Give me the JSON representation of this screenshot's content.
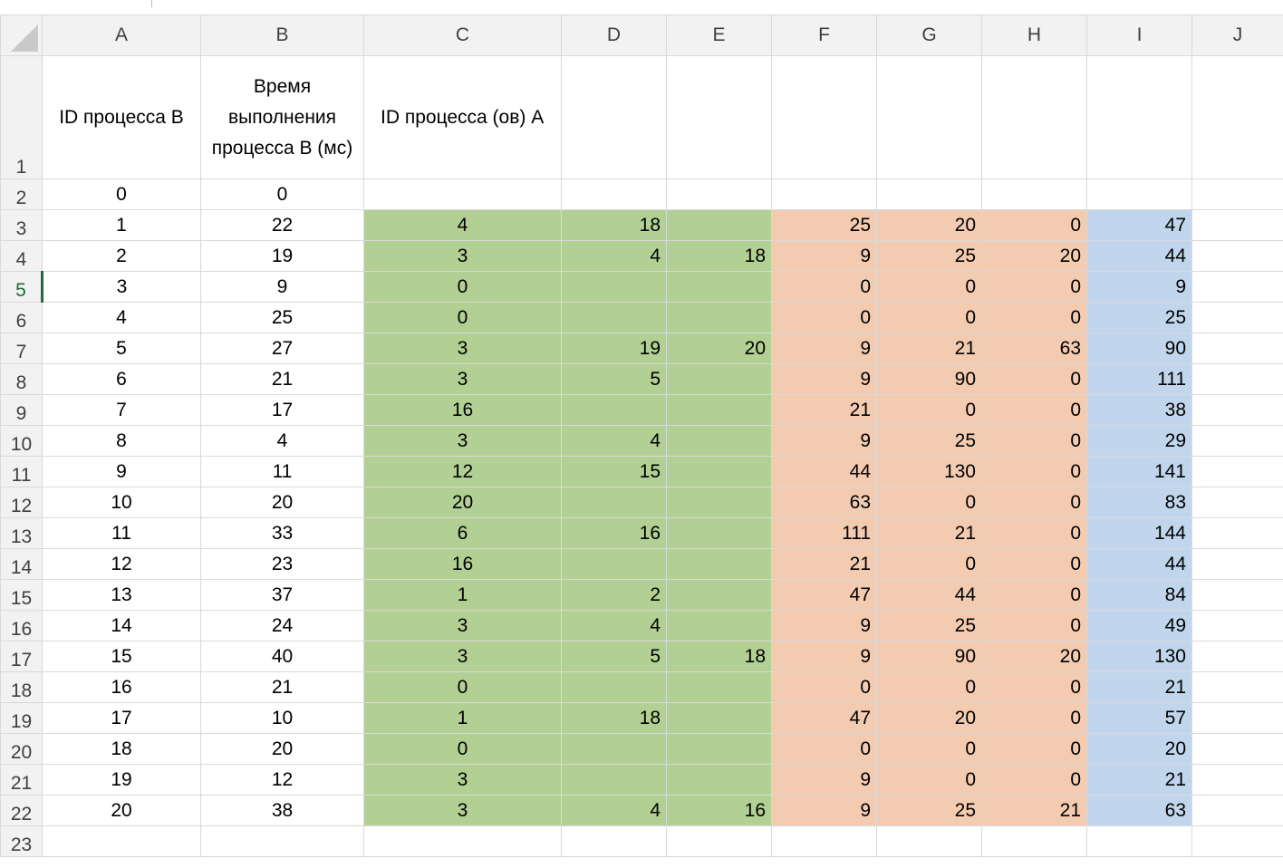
{
  "columns": [
    "A",
    "B",
    "C",
    "D",
    "E",
    "F",
    "G",
    "H",
    "I",
    "J"
  ],
  "header_row": {
    "row_label": "1",
    "a": "ID процесса B",
    "b_lines": [
      "Время",
      "выполнения",
      "процесса B (мс)"
    ],
    "c": "ID процесса (ов) A"
  },
  "active_row": "5",
  "colors": {
    "green": "#b2d093",
    "orange": "#f3cbb0",
    "blue": "#c1d6ec"
  },
  "rows": [
    {
      "r": "2",
      "a": "0",
      "b": "0",
      "c": "",
      "d": "",
      "e": "",
      "f": "",
      "g": "",
      "h": "",
      "i": ""
    },
    {
      "r": "3",
      "a": "1",
      "b": "22",
      "c": "4",
      "d": "18",
      "e": "",
      "f": "25",
      "g": "20",
      "h": "0",
      "i": "47"
    },
    {
      "r": "4",
      "a": "2",
      "b": "19",
      "c": "3",
      "d": "4",
      "e": "18",
      "f": "9",
      "g": "25",
      "h": "20",
      "i": "44"
    },
    {
      "r": "5",
      "a": "3",
      "b": "9",
      "c": "0",
      "d": "",
      "e": "",
      "f": "0",
      "g": "0",
      "h": "0",
      "i": "9"
    },
    {
      "r": "6",
      "a": "4",
      "b": "25",
      "c": "0",
      "d": "",
      "e": "",
      "f": "0",
      "g": "0",
      "h": "0",
      "i": "25"
    },
    {
      "r": "7",
      "a": "5",
      "b": "27",
      "c": "3",
      "d": "19",
      "e": "20",
      "f": "9",
      "g": "21",
      "h": "63",
      "i": "90"
    },
    {
      "r": "8",
      "a": "6",
      "b": "21",
      "c": "3",
      "d": "5",
      "e": "",
      "f": "9",
      "g": "90",
      "h": "0",
      "i": "111"
    },
    {
      "r": "9",
      "a": "7",
      "b": "17",
      "c": "16",
      "d": "",
      "e": "",
      "f": "21",
      "g": "0",
      "h": "0",
      "i": "38"
    },
    {
      "r": "10",
      "a": "8",
      "b": "4",
      "c": "3",
      "d": "4",
      "e": "",
      "f": "9",
      "g": "25",
      "h": "0",
      "i": "29"
    },
    {
      "r": "11",
      "a": "9",
      "b": "11",
      "c": "12",
      "d": "15",
      "e": "",
      "f": "44",
      "g": "130",
      "h": "0",
      "i": "141"
    },
    {
      "r": "12",
      "a": "10",
      "b": "20",
      "c": "20",
      "d": "",
      "e": "",
      "f": "63",
      "g": "0",
      "h": "0",
      "i": "83"
    },
    {
      "r": "13",
      "a": "11",
      "b": "33",
      "c": "6",
      "d": "16",
      "e": "",
      "f": "111",
      "g": "21",
      "h": "0",
      "i": "144"
    },
    {
      "r": "14",
      "a": "12",
      "b": "23",
      "c": "16",
      "d": "",
      "e": "",
      "f": "21",
      "g": "0",
      "h": "0",
      "i": "44"
    },
    {
      "r": "15",
      "a": "13",
      "b": "37",
      "c": "1",
      "d": "2",
      "e": "",
      "f": "47",
      "g": "44",
      "h": "0",
      "i": "84"
    },
    {
      "r": "16",
      "a": "14",
      "b": "24",
      "c": "3",
      "d": "4",
      "e": "",
      "f": "9",
      "g": "25",
      "h": "0",
      "i": "49"
    },
    {
      "r": "17",
      "a": "15",
      "b": "40",
      "c": "3",
      "d": "5",
      "e": "18",
      "f": "9",
      "g": "90",
      "h": "20",
      "i": "130"
    },
    {
      "r": "18",
      "a": "16",
      "b": "21",
      "c": "0",
      "d": "",
      "e": "",
      "f": "0",
      "g": "0",
      "h": "0",
      "i": "21"
    },
    {
      "r": "19",
      "a": "17",
      "b": "10",
      "c": "1",
      "d": "18",
      "e": "",
      "f": "47",
      "g": "20",
      "h": "0",
      "i": "57"
    },
    {
      "r": "20",
      "a": "18",
      "b": "20",
      "c": "0",
      "d": "",
      "e": "",
      "f": "0",
      "g": "0",
      "h": "0",
      "i": "20"
    },
    {
      "r": "21",
      "a": "19",
      "b": "12",
      "c": "3",
      "d": "",
      "e": "",
      "f": "9",
      "g": "0",
      "h": "0",
      "i": "21"
    },
    {
      "r": "22",
      "a": "20",
      "b": "38",
      "c": "3",
      "d": "4",
      "e": "16",
      "f": "9",
      "g": "25",
      "h": "21",
      "i": "63"
    },
    {
      "r": "23",
      "a": "",
      "b": "",
      "c": "",
      "d": "",
      "e": "",
      "f": "",
      "g": "",
      "h": "",
      "i": ""
    }
  ]
}
